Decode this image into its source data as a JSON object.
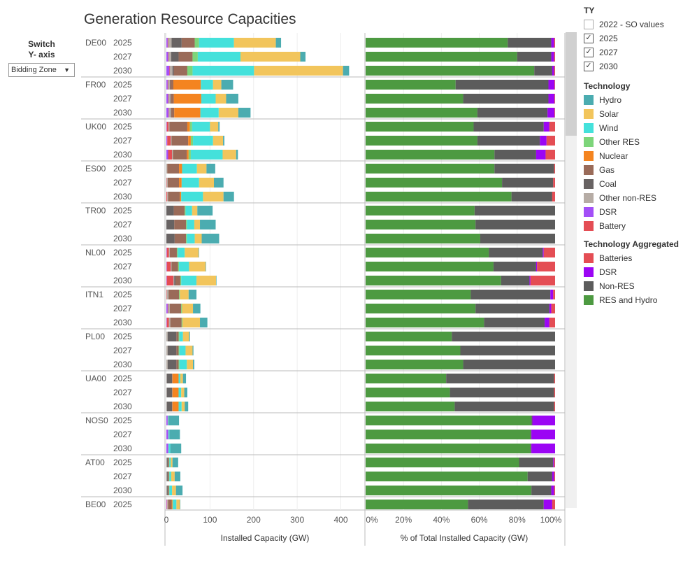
{
  "title": "Generation Resource Capacities",
  "switch": {
    "label_line1": "Switch",
    "label_line2": "Y- axis",
    "selected": "Bidding Zone"
  },
  "ty_filter": {
    "title": "TY",
    "options": [
      {
        "label": "2022 - SO values",
        "checked": false
      },
      {
        "label": "2025",
        "checked": true
      },
      {
        "label": "2027",
        "checked": true
      },
      {
        "label": "2030",
        "checked": true
      }
    ]
  },
  "legend_technology": {
    "title": "Technology",
    "items": [
      {
        "label": "Hydro",
        "color": "#4bacb0"
      },
      {
        "label": "Solar",
        "color": "#f2c55c"
      },
      {
        "label": "Wind",
        "color": "#44e1db"
      },
      {
        "label": "Other RES",
        "color": "#7dd57a"
      },
      {
        "label": "Nuclear",
        "color": "#f48420"
      },
      {
        "label": "Gas",
        "color": "#9a6b59"
      },
      {
        "label": "Coal",
        "color": "#686363"
      },
      {
        "label": "Other non-RES",
        "color": "#b6aca5"
      },
      {
        "label": "DSR",
        "color": "#a34ff7"
      },
      {
        "label": "Battery",
        "color": "#e44d54"
      }
    ]
  },
  "legend_aggregated": {
    "title": "Technology Aggregated",
    "items": [
      {
        "label": "Batteries",
        "color": "#e44d54"
      },
      {
        "label": "DSR",
        "color": "#9b05f4"
      },
      {
        "label": "Non-RES",
        "color": "#5c5c5c"
      },
      {
        "label": "RES and Hydro",
        "color": "#4d9a41"
      }
    ]
  },
  "chart_data": [
    {
      "type": "bar",
      "orientation": "horizontal",
      "stacked": true,
      "xlabel": "Installed Capacity (GW)",
      "xlim": [
        0,
        420
      ],
      "xticks": [
        0,
        100,
        200,
        300,
        400
      ],
      "stack_order": [
        "DSR",
        "Battery",
        "Other non-RES",
        "Coal",
        "Gas",
        "Nuclear",
        "Other RES",
        "Wind",
        "Solar",
        "Hydro"
      ],
      "rows": [
        {
          "zone": "DE00",
          "year": "2025",
          "values": [
            3,
            1,
            8,
            23,
            30,
            0,
            10,
            80,
            96,
            12
          ]
        },
        {
          "zone": "DE00",
          "year": "2027",
          "values": [
            4,
            1,
            6,
            17,
            32,
            0,
            12,
            98,
            137,
            12
          ]
        },
        {
          "zone": "DE00",
          "year": "2030",
          "values": [
            7,
            1,
            6,
            3,
            31,
            0,
            12,
            141,
            204,
            14
          ]
        },
        {
          "zone": "FR00",
          "year": "2025",
          "values": [
            3,
            1,
            4,
            1,
            7,
            63,
            0,
            28,
            19,
            27
          ]
        },
        {
          "zone": "FR00",
          "year": "2027",
          "values": [
            4,
            1,
            4,
            1,
            7,
            63,
            0,
            33,
            24,
            28
          ]
        },
        {
          "zone": "FR00",
          "year": "2030",
          "values": [
            5,
            1,
            4,
            1,
            7,
            60,
            0,
            42,
            45,
            28
          ]
        },
        {
          "zone": "UK00",
          "year": "2025",
          "values": [
            1,
            4,
            2,
            0,
            41,
            6,
            5,
            41,
            19,
            3
          ]
        },
        {
          "zone": "UK00",
          "year": "2027",
          "values": [
            2,
            8,
            2,
            0,
            38,
            6,
            5,
            46,
            23,
            3
          ]
        },
        {
          "zone": "UK00",
          "year": "2030",
          "values": [
            4,
            9,
            2,
            0,
            32,
            4,
            5,
            73,
            31,
            4
          ]
        },
        {
          "zone": "ES00",
          "year": "2025",
          "values": [
            0,
            0,
            2,
            0,
            27,
            7,
            0,
            34,
            22,
            20
          ]
        },
        {
          "zone": "ES00",
          "year": "2027",
          "values": [
            0,
            1,
            2,
            0,
            26,
            6,
            0,
            40,
            34,
            22
          ]
        },
        {
          "zone": "ES00",
          "year": "2030",
          "values": [
            0,
            2,
            2,
            0,
            27,
            3,
            0,
            50,
            47,
            24
          ]
        },
        {
          "zone": "TR00",
          "year": "2025",
          "values": [
            0,
            0,
            0,
            17,
            25,
            0,
            2,
            15,
            12,
            35
          ]
        },
        {
          "zone": "TR00",
          "year": "2027",
          "values": [
            0,
            0,
            0,
            18,
            27,
            0,
            2,
            17,
            13,
            36
          ]
        },
        {
          "zone": "TR00",
          "year": "2030",
          "values": [
            0,
            0,
            0,
            19,
            26,
            0,
            2,
            18,
            16,
            40
          ]
        },
        {
          "zone": "NL00",
          "year": "2025",
          "values": [
            1,
            5,
            2,
            0,
            16,
            0,
            2,
            16,
            32,
            1
          ]
        },
        {
          "zone": "NL00",
          "year": "2027",
          "values": [
            1,
            9,
            2,
            0,
            15,
            0,
            2,
            23,
            38,
            1
          ]
        },
        {
          "zone": "NL00",
          "year": "2030",
          "values": [
            1,
            15,
            2,
            3,
            11,
            0,
            2,
            35,
            45,
            1
          ]
        },
        {
          "zone": "ITN1",
          "year": "2025",
          "values": [
            0,
            1,
            4,
            0,
            24,
            0,
            2,
            0,
            20,
            18
          ]
        },
        {
          "zone": "ITN1",
          "year": "2027",
          "values": [
            3,
            1,
            4,
            0,
            26,
            0,
            2,
            0,
            25,
            17
          ]
        },
        {
          "zone": "ITN1",
          "year": "2030",
          "values": [
            1,
            5,
            3,
            0,
            26,
            0,
            2,
            0,
            40,
            17
          ]
        },
        {
          "zone": "PL00",
          "year": "2025",
          "values": [
            0,
            0,
            3,
            20,
            5,
            0,
            2,
            8,
            14,
            2
          ]
        },
        {
          "zone": "PL00",
          "year": "2027",
          "values": [
            0,
            0,
            3,
            20,
            5,
            0,
            2,
            14,
            16,
            2
          ]
        },
        {
          "zone": "PL00",
          "year": "2030",
          "values": [
            0,
            0,
            3,
            20,
            5,
            0,
            2,
            17,
            14,
            3
          ]
        },
        {
          "zone": "UA00",
          "year": "2025",
          "values": [
            0,
            0,
            1,
            12,
            1,
            14,
            0,
            4,
            6,
            7
          ]
        },
        {
          "zone": "UA00",
          "year": "2027",
          "values": [
            0,
            0,
            1,
            12,
            1,
            14,
            0,
            6,
            7,
            7
          ]
        },
        {
          "zone": "UA00",
          "year": "2030",
          "values": [
            0,
            0,
            1,
            12,
            1,
            14,
            0,
            7,
            7,
            8
          ]
        },
        {
          "zone": "NOS0",
          "year": "2025",
          "values": [
            3,
            0,
            1,
            0,
            0,
            0,
            0,
            1,
            0,
            24
          ]
        },
        {
          "zone": "NOS0",
          "year": "2027",
          "values": [
            4,
            0,
            1,
            0,
            0,
            0,
            0,
            2,
            0,
            24
          ]
        },
        {
          "zone": "NOS0",
          "year": "2030",
          "values": [
            4,
            0,
            1,
            0,
            0,
            0,
            0,
            4,
            0,
            25
          ]
        },
        {
          "zone": "AT00",
          "year": "2025",
          "values": [
            0,
            0,
            1,
            2,
            3,
            0,
            1,
            3,
            4,
            13
          ]
        },
        {
          "zone": "AT00",
          "year": "2027",
          "values": [
            0,
            0,
            1,
            2,
            3,
            0,
            1,
            4,
            8,
            13
          ]
        },
        {
          "zone": "AT00",
          "year": "2030",
          "values": [
            0,
            0,
            1,
            2,
            3,
            0,
            1,
            6,
            9,
            15
          ]
        },
        {
          "zone": "BE00",
          "year": "2025",
          "values": [
            1,
            1,
            2,
            0,
            8,
            2,
            1,
            8,
            8,
            1
          ]
        }
      ]
    },
    {
      "type": "bar",
      "orientation": "horizontal",
      "stacked": true,
      "percent": true,
      "xlabel": "% of Total Installed Capacity (GW)",
      "xlim": [
        0,
        100
      ],
      "xticks": [
        "0%",
        "20%",
        "40%",
        "60%",
        "80%",
        "100%"
      ],
      "stack_order": [
        "RES and Hydro",
        "Non-RES",
        "DSR",
        "Batteries"
      ],
      "rows": [
        {
          "zone": "DE00",
          "year": "2025",
          "values": [
            75,
            23,
            1.5,
            0.5
          ]
        },
        {
          "zone": "DE00",
          "year": "2027",
          "values": [
            80,
            18,
            1.5,
            0.5
          ]
        },
        {
          "zone": "DE00",
          "year": "2030",
          "values": [
            89,
            9.5,
            1,
            0.5
          ]
        },
        {
          "zone": "FR00",
          "year": "2025",
          "values": [
            47.5,
            49,
            3.2,
            0.3
          ]
        },
        {
          "zone": "FR00",
          "year": "2027",
          "values": [
            51.5,
            45,
            3.2,
            0.3
          ]
        },
        {
          "zone": "FR00",
          "year": "2030",
          "values": [
            59,
            37,
            3.7,
            0.3
          ]
        },
        {
          "zone": "UK00",
          "year": "2025",
          "values": [
            57,
            37,
            3,
            3
          ]
        },
        {
          "zone": "UK00",
          "year": "2027",
          "values": [
            59,
            33,
            3.5,
            4.5
          ]
        },
        {
          "zone": "UK00",
          "year": "2030",
          "values": [
            68,
            22,
            5,
            5
          ]
        },
        {
          "zone": "ES00",
          "year": "2025",
          "values": [
            68,
            31.5,
            0,
            0.5
          ]
        },
        {
          "zone": "ES00",
          "year": "2027",
          "values": [
            72,
            27,
            0,
            1
          ]
        },
        {
          "zone": "ES00",
          "year": "2030",
          "values": [
            77,
            21.5,
            0,
            1.5
          ]
        },
        {
          "zone": "TR00",
          "year": "2025",
          "values": [
            57.5,
            42.5,
            0,
            0
          ]
        },
        {
          "zone": "TR00",
          "year": "2027",
          "values": [
            58,
            42,
            0,
            0
          ]
        },
        {
          "zone": "TR00",
          "year": "2030",
          "values": [
            60.5,
            39.5,
            0,
            0
          ]
        },
        {
          "zone": "NL00",
          "year": "2025",
          "values": [
            65,
            28.5,
            0.5,
            6
          ]
        },
        {
          "zone": "NL00",
          "year": "2027",
          "values": [
            67.5,
            22.5,
            0.5,
            9.5
          ]
        },
        {
          "zone": "NL00",
          "year": "2030",
          "values": [
            71.5,
            15,
            0.5,
            13
          ]
        },
        {
          "zone": "ITN1",
          "year": "2025",
          "values": [
            55.5,
            42,
            1.5,
            1
          ]
        },
        {
          "zone": "ITN1",
          "year": "2027",
          "values": [
            58,
            39,
            1,
            2
          ]
        },
        {
          "zone": "ITN1",
          "year": "2030",
          "values": [
            62.5,
            32,
            2.5,
            3
          ]
        },
        {
          "zone": "PL00",
          "year": "2025",
          "values": [
            45.5,
            54.5,
            0,
            0
          ]
        },
        {
          "zone": "PL00",
          "year": "2027",
          "values": [
            50,
            50,
            0,
            0
          ]
        },
        {
          "zone": "PL00",
          "year": "2030",
          "values": [
            51.5,
            48.5,
            0,
            0
          ]
        },
        {
          "zone": "UA00",
          "year": "2025",
          "values": [
            42.5,
            57,
            0,
            0.5
          ]
        },
        {
          "zone": "UA00",
          "year": "2027",
          "values": [
            44.5,
            55,
            0,
            0.5
          ]
        },
        {
          "zone": "UA00",
          "year": "2030",
          "values": [
            47,
            52.5,
            0,
            0.5
          ]
        },
        {
          "zone": "NOS0",
          "year": "2025",
          "values": [
            87.5,
            0.5,
            12,
            0
          ]
        },
        {
          "zone": "NOS0",
          "year": "2027",
          "values": [
            87,
            0.5,
            12.5,
            0
          ]
        },
        {
          "zone": "NOS0",
          "year": "2030",
          "values": [
            87,
            0.5,
            12.5,
            0
          ]
        },
        {
          "zone": "AT00",
          "year": "2025",
          "values": [
            81,
            18,
            0.5,
            0.5
          ]
        },
        {
          "zone": "AT00",
          "year": "2027",
          "values": [
            85.5,
            13,
            1,
            0.5
          ]
        },
        {
          "zone": "AT00",
          "year": "2030",
          "values": [
            87.5,
            10.5,
            1.5,
            0.5
          ]
        },
        {
          "zone": "BE00",
          "year": "2025",
          "values": [
            54,
            40,
            4.5,
            1.5
          ]
        }
      ]
    }
  ]
}
